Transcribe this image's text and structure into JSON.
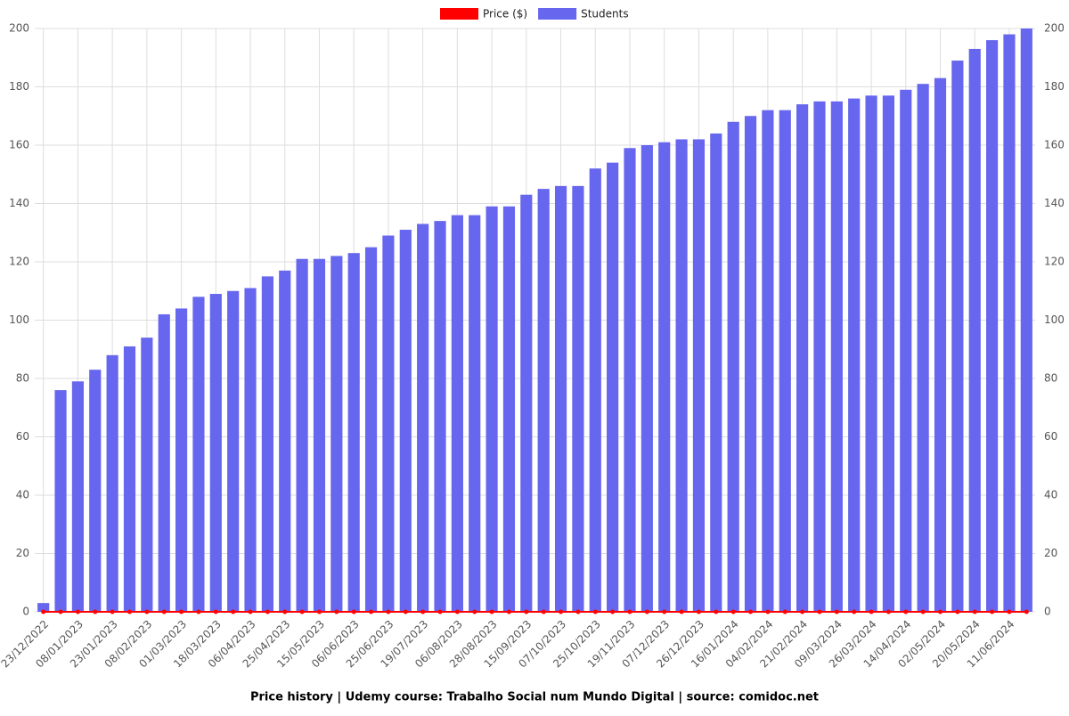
{
  "chart_data": {
    "type": "bar",
    "title": "Price history | Udemy course: Trabalho Social num Mundo Digital | source: comidoc.net",
    "categories": [
      "23/12/2022",
      null,
      "08/01/2023",
      null,
      "23/01/2023",
      null,
      "08/02/2023",
      null,
      "01/03/2023",
      null,
      "18/03/2023",
      null,
      "06/04/2023",
      null,
      "25/04/2023",
      null,
      "15/05/2023",
      null,
      "06/06/2023",
      null,
      "25/06/2023",
      null,
      "19/07/2023",
      null,
      "06/08/2023",
      null,
      "28/08/2023",
      null,
      "15/09/2023",
      null,
      "07/10/2023",
      null,
      "25/10/2023",
      null,
      "19/11/2023",
      null,
      "07/12/2023",
      null,
      "26/12/2023",
      null,
      "16/01/2024",
      null,
      "04/02/2024",
      null,
      "21/02/2024",
      null,
      "09/03/2024",
      null,
      "26/03/2024",
      null,
      "14/04/2024",
      null,
      "02/05/2024",
      null,
      "20/05/2024",
      null,
      "11/06/2024",
      null
    ],
    "series": [
      {
        "name": "Price ($)",
        "color": "#ff0000",
        "type": "line",
        "axis": "y",
        "values": [
          0,
          0,
          0,
          0,
          0,
          0,
          0,
          0,
          0,
          0,
          0,
          0,
          0,
          0,
          0,
          0,
          0,
          0,
          0,
          0,
          0,
          0,
          0,
          0,
          0,
          0,
          0,
          0,
          0,
          0,
          0,
          0,
          0,
          0,
          0,
          0,
          0,
          0,
          0,
          0,
          0,
          0,
          0,
          0,
          0,
          0,
          0,
          0,
          0,
          0,
          0,
          0,
          0,
          0,
          0,
          0,
          0,
          0
        ]
      },
      {
        "name": "Students",
        "color": "#6666ee",
        "type": "bar",
        "axis": "y2",
        "values": [
          3,
          76,
          79,
          83,
          88,
          91,
          94,
          102,
          104,
          108,
          109,
          110,
          111,
          115,
          117,
          121,
          121,
          122,
          123,
          125,
          129,
          131,
          133,
          134,
          136,
          136,
          139,
          139,
          143,
          145,
          146,
          146,
          152,
          154,
          159,
          160,
          161,
          162,
          162,
          164,
          168,
          170,
          172,
          172,
          174,
          175,
          175,
          176,
          177,
          177,
          179,
          181,
          183,
          189,
          193,
          196,
          198,
          200
        ]
      }
    ],
    "ylim": [
      0,
      200
    ],
    "yticks": [
      0,
      20,
      40,
      60,
      80,
      100,
      120,
      140,
      160,
      180,
      200
    ],
    "y2lim": [
      0,
      200
    ],
    "y2ticks": [
      0,
      20,
      40,
      60,
      80,
      100,
      120,
      140,
      160,
      180,
      200
    ],
    "grid": true,
    "legend": "top"
  }
}
